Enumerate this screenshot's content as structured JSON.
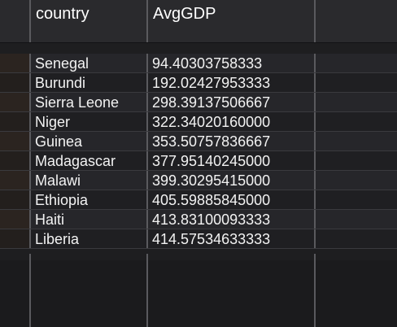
{
  "table": {
    "columns": [
      "",
      "country",
      "AvgGDP",
      ""
    ],
    "rows": [
      {
        "country": "Senegal",
        "avg_gdp": "94.40303758333"
      },
      {
        "country": "Burundi",
        "avg_gdp": "192.02427953333"
      },
      {
        "country": "Sierra Leone",
        "avg_gdp": "298.39137506667"
      },
      {
        "country": "Niger",
        "avg_gdp": "322.34020160000"
      },
      {
        "country": "Guinea",
        "avg_gdp": "353.50757836667"
      },
      {
        "country": "Madagascar",
        "avg_gdp": "377.95140245000"
      },
      {
        "country": "Malawi",
        "avg_gdp": "399.30295415000"
      },
      {
        "country": "Ethiopia",
        "avg_gdp": "405.59885845000"
      },
      {
        "country": "Haiti",
        "avg_gdp": "413.83100093333"
      },
      {
        "country": "Liberia",
        "avg_gdp": "414.57534633333"
      }
    ]
  },
  "colors": {
    "background": "#1e1e20",
    "header_bg": "#2a2a2d",
    "row_even": "#26262a",
    "row_odd": "#1f1f22",
    "text": "#f2f2f2",
    "gridline": "#5a5a5e"
  }
}
